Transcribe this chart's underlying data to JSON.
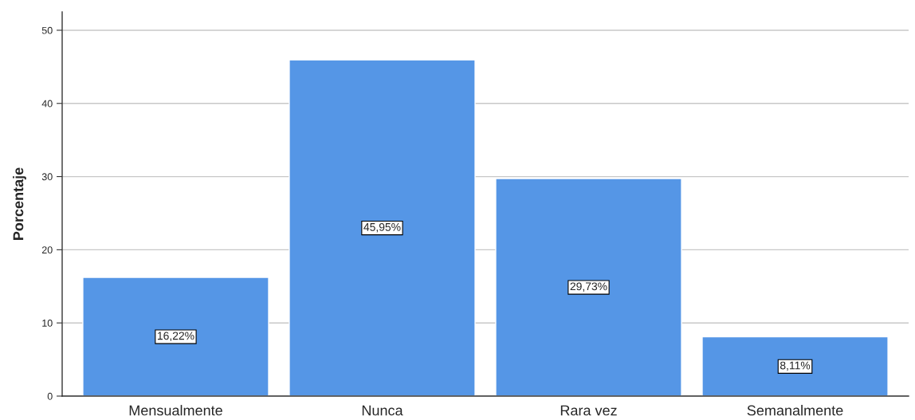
{
  "chart_data": {
    "type": "bar",
    "ylabel": "Porcentaje",
    "categories": [
      "Mensualmente",
      "Nunca",
      "Rara vez",
      "Semanalmente"
    ],
    "values": [
      16.22,
      45.95,
      29.73,
      8.11
    ],
    "value_labels": [
      "16,22%",
      "45,95%",
      "29,73%",
      "8,11%"
    ],
    "color": "#5596e6",
    "ylim": [
      0,
      52.5
    ],
    "yticks": [
      0,
      10,
      20,
      30,
      40,
      50
    ],
    "grid": "y"
  }
}
